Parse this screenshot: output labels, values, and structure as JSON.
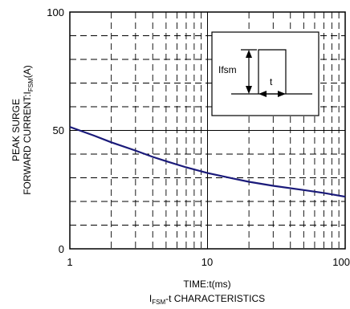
{
  "chart_data": {
    "type": "line",
    "title": "I",
    "title_sub": "FSM",
    "title_rest": "-t CHARACTERISTICS",
    "xlabel": "TIME:t(ms)",
    "ylabel_line1": "PEAK SURGE",
    "ylabel_line2_main": "FORWARD CURRENT:I",
    "ylabel_line2_sub": "FSM",
    "ylabel_line2_unit": "(A)",
    "x_scale": "log",
    "xlim": [
      1,
      100
    ],
    "ylim": [
      0,
      100
    ],
    "x_ticks": [
      "1",
      "10",
      "100"
    ],
    "y_ticks": [
      "0",
      "50",
      "100"
    ],
    "grid": "dashed minor, solid at major",
    "series": [
      {
        "color": "#1a1a7a",
        "x": [
          1,
          1.5,
          2,
          3,
          4,
          5,
          7,
          10,
          15,
          20,
          30,
          50,
          70,
          100
        ],
        "y": [
          51.5,
          47.8,
          45.0,
          41.5,
          38.8,
          37.0,
          34.4,
          32.0,
          29.8,
          28.3,
          26.6,
          24.8,
          23.6,
          22.0
        ]
      }
    ],
    "inset": {
      "label_height": "Ifsm",
      "label_width": "t"
    }
  }
}
